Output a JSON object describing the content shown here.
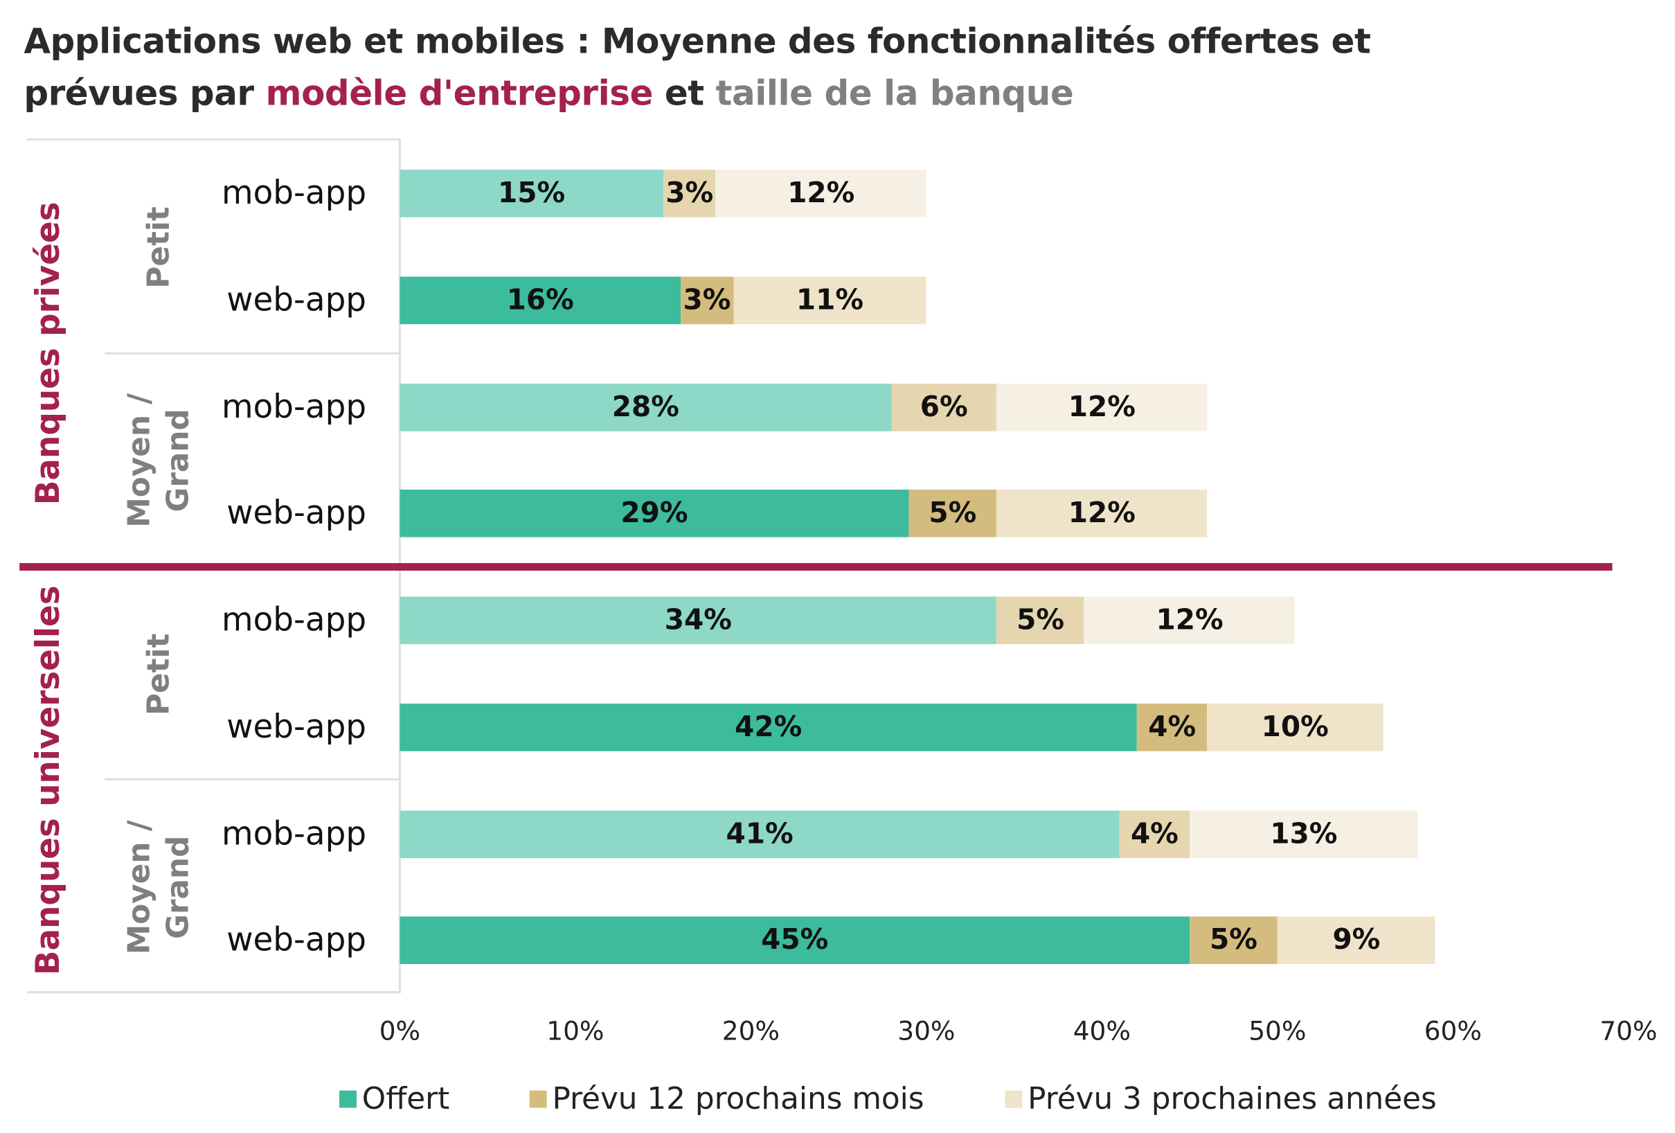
{
  "chart_data": {
    "type": "bar",
    "orientation": "horizontal",
    "stacked": true,
    "title": {
      "part1": "Applications web et mobiles : Moyenne des fonctionnalités offertes et",
      "part2": "prévues par ",
      "part3": "modèle d'entreprise",
      "part4": " et ",
      "part5": "taille de la banque"
    },
    "title_colors": {
      "main": "#2b2b2b",
      "modele": "#a3214f",
      "taille": "#808080"
    },
    "xlim": [
      0,
      70
    ],
    "xticks": [
      "0%",
      "10%",
      "20%",
      "30%",
      "40%",
      "50%",
      "60%",
      "70%"
    ],
    "groups": [
      {
        "label": "Banques privées",
        "sizes": [
          {
            "label": "Petit",
            "rows": [
              {
                "label": "mob-app",
                "type": "mob",
                "values": [
                  15,
                  3,
                  12
                ]
              },
              {
                "label": "web-app",
                "type": "web",
                "values": [
                  16,
                  3,
                  11
                ]
              }
            ]
          },
          {
            "label": "Moyen / Grand",
            "rows": [
              {
                "label": "mob-app",
                "type": "mob",
                "values": [
                  28,
                  6,
                  12
                ]
              },
              {
                "label": "web-app",
                "type": "web",
                "values": [
                  29,
                  5,
                  12
                ]
              }
            ]
          }
        ]
      },
      {
        "label": "Banques universelles",
        "sizes": [
          {
            "label": "Petit",
            "rows": [
              {
                "label": "mob-app",
                "type": "mob",
                "values": [
                  34,
                  5,
                  12
                ]
              },
              {
                "label": "web-app",
                "type": "web",
                "values": [
                  42,
                  4,
                  10
                ]
              }
            ]
          },
          {
            "label": "Moyen / Grand",
            "rows": [
              {
                "label": "mob-app",
                "type": "mob",
                "values": [
                  41,
                  4,
                  13
                ]
              },
              {
                "label": "web-app",
                "type": "web",
                "values": [
                  45,
                  5,
                  9
                ]
              }
            ]
          }
        ]
      }
    ],
    "series": [
      {
        "name": "Offert",
        "color": "#3dbb9d",
        "color_mob": "#8dd8c6"
      },
      {
        "name": "Prévu 12 prochains mois",
        "color": "#d4bc7e",
        "color_mob": "#e6d6b0"
      },
      {
        "name": "Prévu 3 prochaines années",
        "color": "#efe4c9",
        "color_mob": "#f5f0e3"
      }
    ],
    "separator_color": "#a3214f",
    "legend_position": "bottom",
    "grid": false
  }
}
